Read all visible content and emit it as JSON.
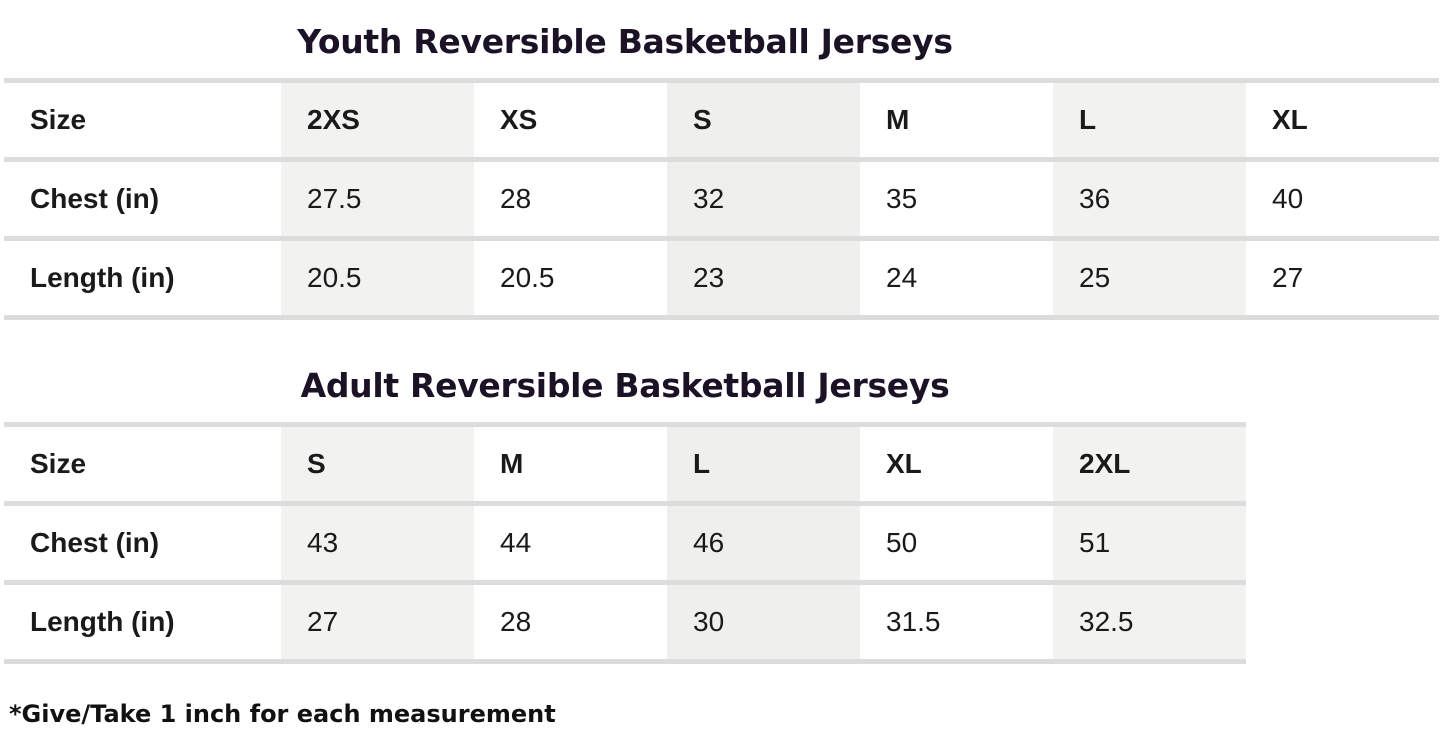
{
  "youth": {
    "title": "Youth Reversible Basketball Jerseys",
    "rows": [
      {
        "label": "Size",
        "values": [
          "2XS",
          "XS",
          "S",
          "M",
          "L",
          "XL"
        ]
      },
      {
        "label": "Chest (in)",
        "values": [
          "27.5",
          "28",
          "32",
          "35",
          "36",
          "40"
        ]
      },
      {
        "label": "Length (in)",
        "values": [
          "20.5",
          "20.5",
          "23",
          "24",
          "25",
          "27"
        ]
      }
    ]
  },
  "adult": {
    "title": "Adult Reversible Basketball Jerseys",
    "rows": [
      {
        "label": "Size",
        "values": [
          "S",
          "M",
          "L",
          "XL",
          "2XL"
        ]
      },
      {
        "label": "Chest (in)",
        "values": [
          "43",
          "44",
          "46",
          "50",
          "51"
        ]
      },
      {
        "label": "Length (in)",
        "values": [
          "27",
          "28",
          "30",
          "31.5",
          "32.5"
        ]
      }
    ]
  },
  "footnote": "*Give/Take 1 inch for each measurement"
}
